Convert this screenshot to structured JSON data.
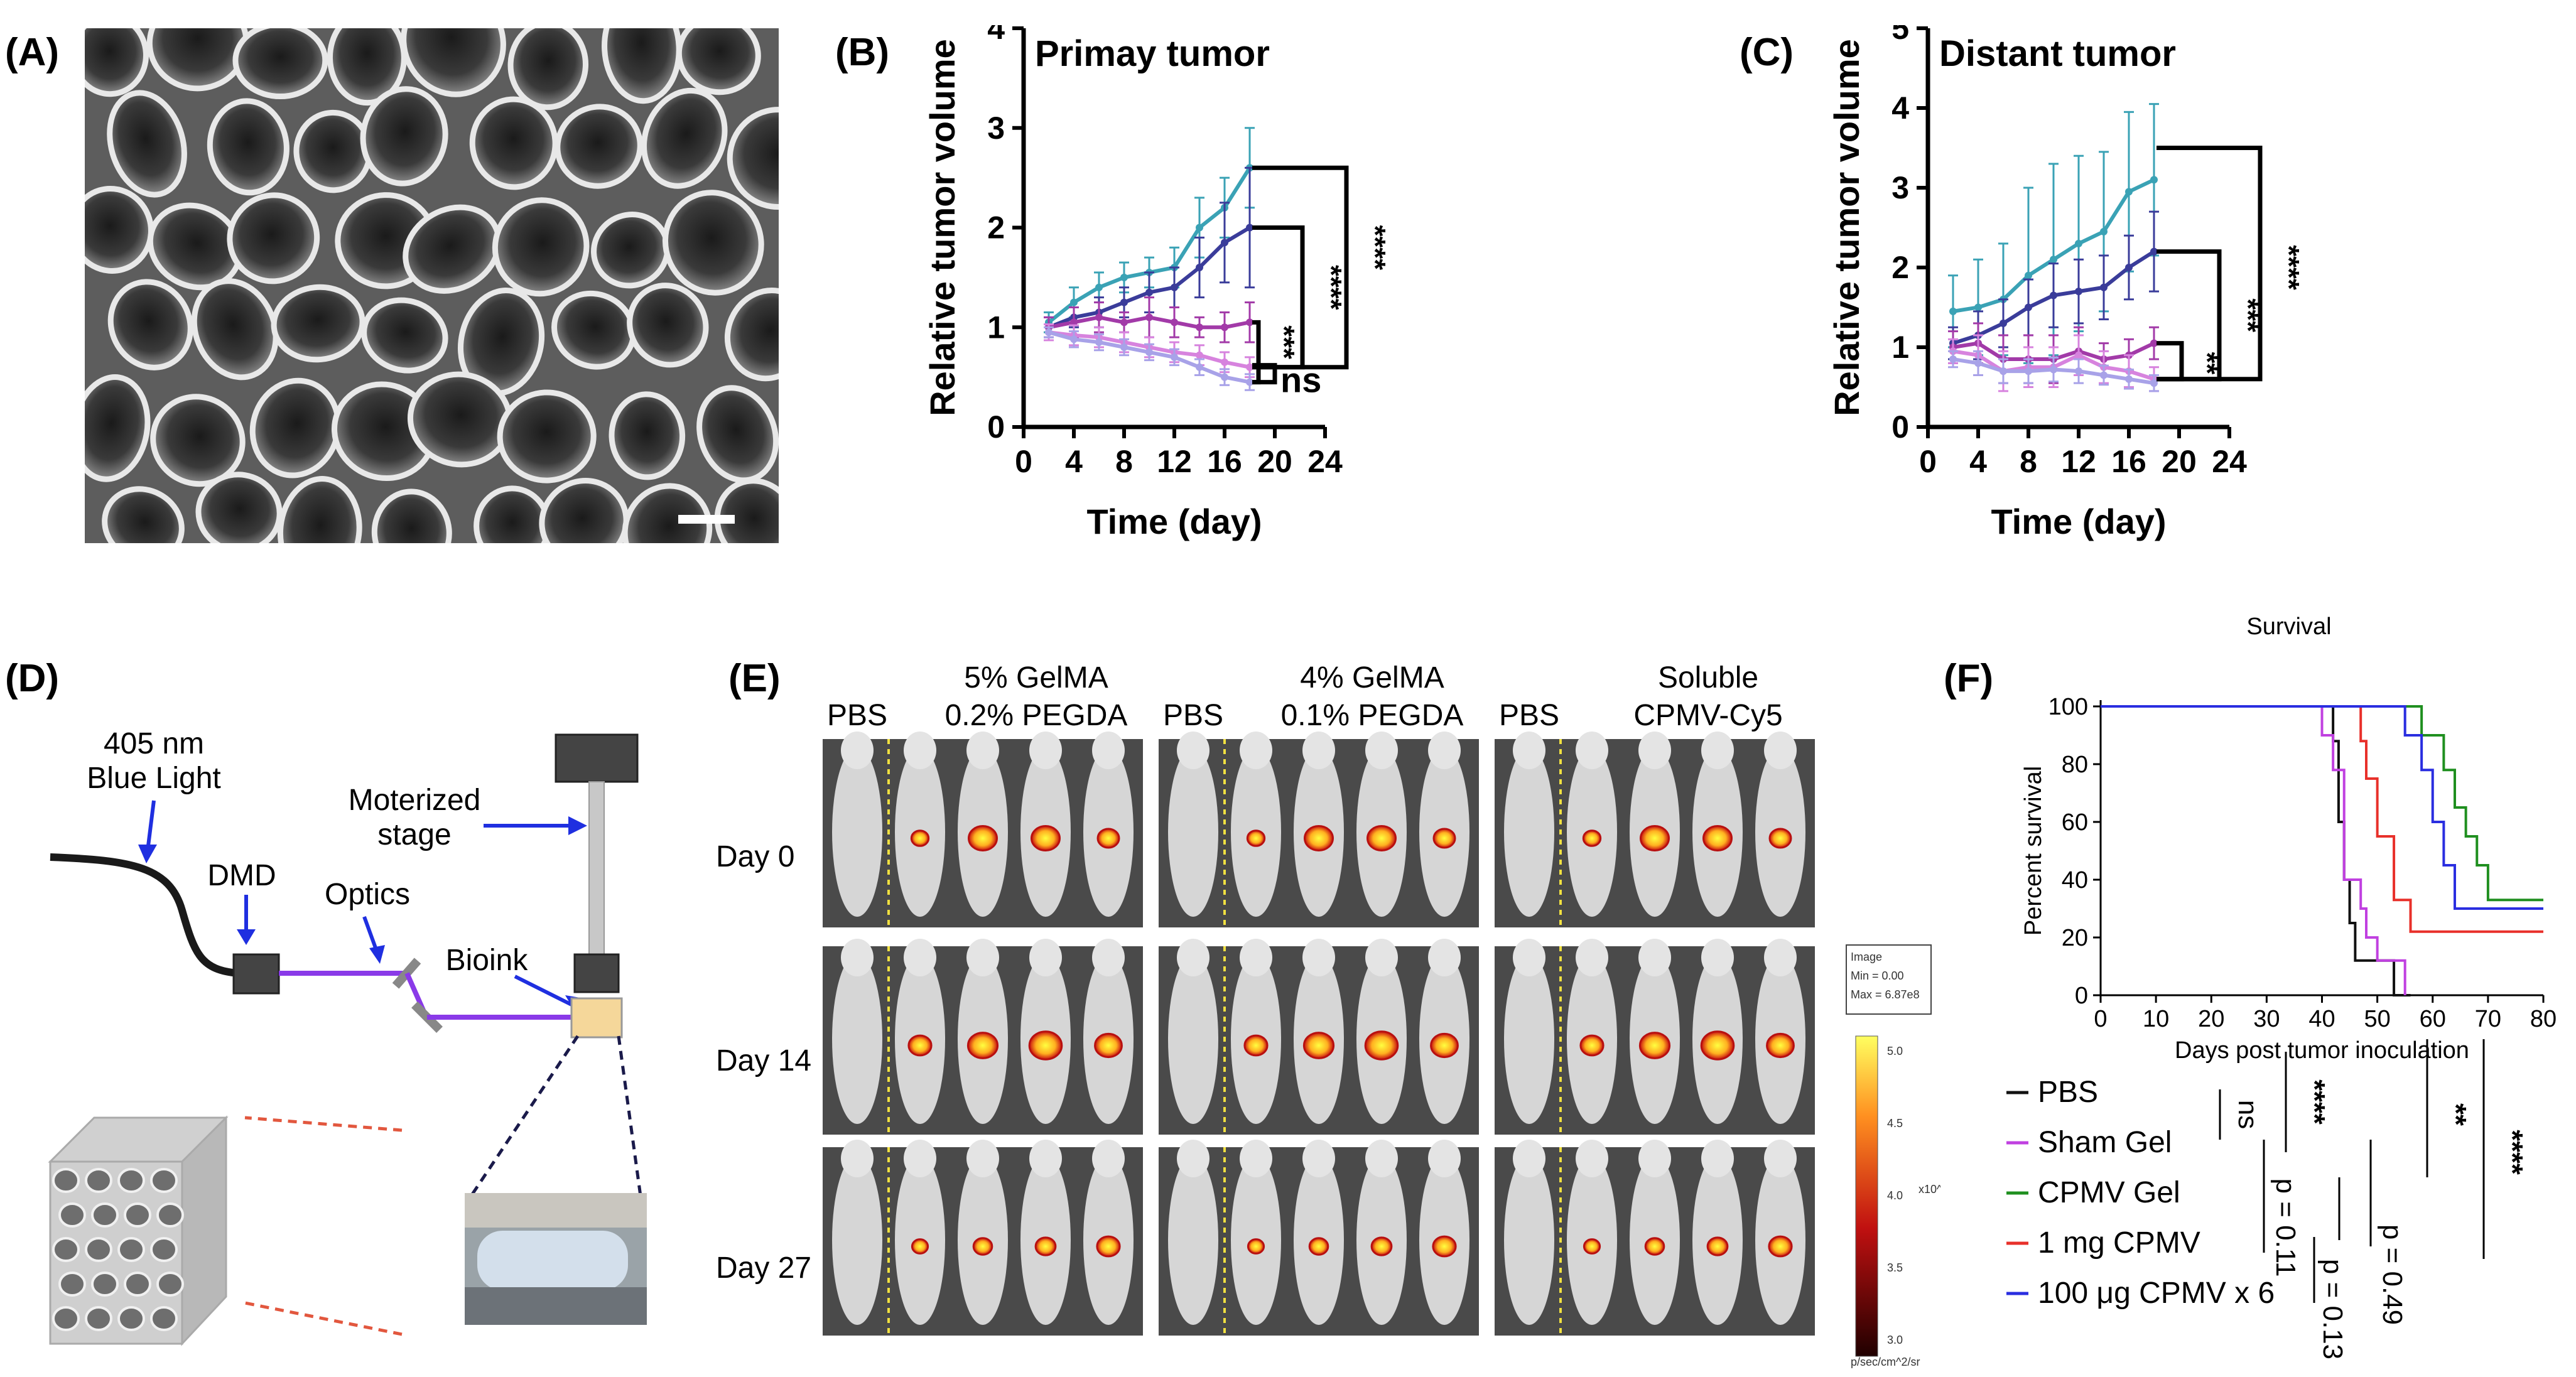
{
  "panels": {
    "A": "(A)",
    "B": "(B)",
    "C": "(C)",
    "D": "(D)",
    "E": "(E)",
    "F": "(F)"
  },
  "colors": {
    "teal": "#3aa2b5",
    "navy": "#3a3c9a",
    "magenta": "#a23aa8",
    "pink": "#d783de",
    "lavender": "#a8a2e8",
    "black": "#111111",
    "violet": "#c040e0",
    "green": "#1f8f1f",
    "red": "#e8302a",
    "blue": "#2a2ee0"
  },
  "diagram": {
    "light": "405 nm\nBlue Light",
    "dmd": "DMD",
    "optics": "Optics",
    "stage": "Moterized\nstage",
    "bioink": "Bioink"
  },
  "imaging": {
    "groups": [
      {
        "top": "5% GelMA",
        "sub_left": "PBS",
        "sub_right": "0.2% PEGDA"
      },
      {
        "top": "4% GelMA",
        "sub_left": "PBS",
        "sub_right": "0.1% PEGDA"
      },
      {
        "top": "Soluble",
        "sub_left": "PBS",
        "sub_right": "CPMV-Cy5"
      }
    ],
    "days": [
      "Day 0",
      "Day 14",
      "Day 27"
    ],
    "colorbar": {
      "box_title": "Image",
      "box_min": "Min = 0.00",
      "box_max": "Max = 6.87e8",
      "ticks": [
        "5.0",
        "4.5",
        "4.0",
        "3.5",
        "3.0"
      ],
      "exp": "x10^8",
      "unit": "p/sec/cm^2/sr"
    }
  },
  "chart_data": [
    {
      "type": "line",
      "title": "Primay tumor",
      "xlabel": "Time (day)",
      "ylabel": "Relative tumor volume",
      "xlim": [
        0,
        24
      ],
      "ylim": [
        0,
        4
      ],
      "xticks": [
        0,
        4,
        8,
        12,
        16,
        20,
        24
      ],
      "yticks": [
        0,
        1,
        2,
        3,
        4
      ],
      "x": [
        2,
        4,
        6,
        8,
        10,
        12,
        14,
        16,
        18
      ],
      "series": [
        {
          "name": "teal",
          "values": [
            1.05,
            1.25,
            1.4,
            1.5,
            1.55,
            1.6,
            2.0,
            2.2,
            2.6
          ],
          "err": [
            0.1,
            0.15,
            0.15,
            0.15,
            0.15,
            0.2,
            0.3,
            0.3,
            0.4
          ]
        },
        {
          "name": "navy",
          "values": [
            1.0,
            1.1,
            1.15,
            1.25,
            1.35,
            1.4,
            1.6,
            1.85,
            2.0
          ],
          "err": [
            0.1,
            0.1,
            0.15,
            0.15,
            0.2,
            0.2,
            0.3,
            0.4,
            0.6
          ]
        },
        {
          "name": "magenta",
          "values": [
            1.0,
            1.05,
            1.1,
            1.05,
            1.1,
            1.05,
            1.0,
            1.0,
            1.05
          ],
          "err": [
            0.1,
            0.15,
            0.15,
            0.1,
            0.2,
            0.15,
            0.1,
            0.15,
            0.2
          ]
        },
        {
          "name": "pink",
          "values": [
            0.95,
            0.92,
            0.9,
            0.85,
            0.8,
            0.75,
            0.72,
            0.65,
            0.6
          ],
          "err": [
            0.08,
            0.1,
            0.1,
            0.1,
            0.1,
            0.1,
            0.1,
            0.1,
            0.1
          ]
        },
        {
          "name": "lavender",
          "values": [
            0.95,
            0.88,
            0.85,
            0.8,
            0.75,
            0.7,
            0.6,
            0.5,
            0.45
          ],
          "err": [
            0.05,
            0.08,
            0.08,
            0.08,
            0.08,
            0.08,
            0.08,
            0.08,
            0.08
          ]
        }
      ],
      "significance": [
        "****",
        "****",
        "***",
        "ns"
      ]
    },
    {
      "type": "line",
      "title": "Distant tumor",
      "xlabel": "Time (day)",
      "ylabel": "Relative tumor volume",
      "xlim": [
        0,
        24
      ],
      "ylim": [
        0,
        5
      ],
      "xticks": [
        0,
        4,
        8,
        12,
        16,
        20,
        24
      ],
      "yticks": [
        0,
        1,
        2,
        3,
        4,
        5
      ],
      "x": [
        2,
        4,
        6,
        8,
        10,
        12,
        14,
        16,
        18
      ],
      "series": [
        {
          "name": "teal",
          "values": [
            1.45,
            1.5,
            1.6,
            1.9,
            2.1,
            2.3,
            2.45,
            2.95,
            3.1
          ],
          "err": [
            0.45,
            0.6,
            0.7,
            1.1,
            1.2,
            1.1,
            1.0,
            1.0,
            0.95
          ]
        },
        {
          "name": "navy",
          "values": [
            1.05,
            1.15,
            1.3,
            1.5,
            1.65,
            1.7,
            1.75,
            2.0,
            2.2
          ],
          "err": [
            0.2,
            0.3,
            0.3,
            0.35,
            0.4,
            0.4,
            0.4,
            0.4,
            0.5
          ]
        },
        {
          "name": "magenta",
          "values": [
            1.0,
            1.05,
            0.85,
            0.85,
            0.85,
            0.95,
            0.85,
            0.9,
            1.05
          ],
          "err": [
            0.2,
            0.25,
            0.3,
            0.3,
            0.3,
            0.3,
            0.2,
            0.2,
            0.2
          ]
        },
        {
          "name": "pink",
          "values": [
            0.95,
            0.9,
            0.7,
            0.75,
            0.75,
            0.9,
            0.75,
            0.7,
            0.6
          ],
          "err": [
            0.15,
            0.25,
            0.25,
            0.25,
            0.25,
            0.25,
            0.2,
            0.2,
            0.15
          ]
        },
        {
          "name": "lavender",
          "values": [
            0.85,
            0.8,
            0.7,
            0.7,
            0.72,
            0.7,
            0.65,
            0.6,
            0.55
          ],
          "err": [
            0.1,
            0.15,
            0.15,
            0.15,
            0.15,
            0.15,
            0.12,
            0.12,
            0.1
          ]
        }
      ],
      "significance": [
        "****",
        "***",
        "**"
      ]
    },
    {
      "type": "line",
      "subtype": "survival-step",
      "title": "Survival",
      "xlabel": "Days post tumor inoculation",
      "ylabel": "Percent survival",
      "xlim": [
        0,
        80
      ],
      "ylim": [
        0,
        100
      ],
      "xticks": [
        0,
        10,
        20,
        30,
        40,
        50,
        60,
        70,
        80
      ],
      "yticks": [
        0,
        20,
        40,
        60,
        80,
        100
      ],
      "series": [
        {
          "name": "PBS",
          "color": "black",
          "steps": [
            [
              0,
              100
            ],
            [
              42,
              100
            ],
            [
              42,
              88
            ],
            [
              43,
              88
            ],
            [
              43,
              60
            ],
            [
              44,
              60
            ],
            [
              44,
              40
            ],
            [
              45,
              40
            ],
            [
              45,
              25
            ],
            [
              46,
              25
            ],
            [
              46,
              12
            ],
            [
              53,
              12
            ],
            [
              53,
              0
            ],
            [
              56,
              0
            ]
          ]
        },
        {
          "name": "Sham Gel",
          "color": "violet",
          "steps": [
            [
              0,
              100
            ],
            [
              40,
              100
            ],
            [
              40,
              90
            ],
            [
              42,
              90
            ],
            [
              42,
              78
            ],
            [
              44,
              78
            ],
            [
              44,
              40
            ],
            [
              47,
              40
            ],
            [
              47,
              30
            ],
            [
              48,
              30
            ],
            [
              48,
              20
            ],
            [
              50,
              20
            ],
            [
              50,
              12
            ],
            [
              55,
              12
            ],
            [
              55,
              0
            ]
          ]
        },
        {
          "name": "CPMV Gel",
          "color": "green",
          "steps": [
            [
              0,
              100
            ],
            [
              58,
              100
            ],
            [
              58,
              90
            ],
            [
              62,
              90
            ],
            [
              62,
              78
            ],
            [
              64,
              78
            ],
            [
              64,
              65
            ],
            [
              66,
              65
            ],
            [
              66,
              55
            ],
            [
              68,
              55
            ],
            [
              68,
              45
            ],
            [
              70,
              45
            ],
            [
              70,
              33
            ],
            [
              80,
              33
            ]
          ]
        },
        {
          "name": "1 mg CPMV",
          "color": "red",
          "steps": [
            [
              0,
              100
            ],
            [
              47,
              100
            ],
            [
              47,
              88
            ],
            [
              48,
              88
            ],
            [
              48,
              75
            ],
            [
              50,
              75
            ],
            [
              50,
              55
            ],
            [
              53,
              55
            ],
            [
              53,
              33
            ],
            [
              56,
              33
            ],
            [
              56,
              22
            ],
            [
              80,
              22
            ]
          ]
        },
        {
          "name": "100 μg CPMV x 6",
          "color": "blue",
          "steps": [
            [
              0,
              100
            ],
            [
              55,
              100
            ],
            [
              55,
              90
            ],
            [
              58,
              90
            ],
            [
              58,
              78
            ],
            [
              60,
              78
            ],
            [
              60,
              60
            ],
            [
              62,
              60
            ],
            [
              62,
              45
            ],
            [
              64,
              45
            ],
            [
              64,
              30
            ],
            [
              80,
              30
            ]
          ]
        }
      ],
      "stats": {
        "ns": "ns",
        "p1": "p = 0.11",
        "p2": "p = 0.13",
        "p3": "p = 0.49",
        "s4": "****",
        "s2": "**",
        "s4b": "****"
      }
    }
  ]
}
